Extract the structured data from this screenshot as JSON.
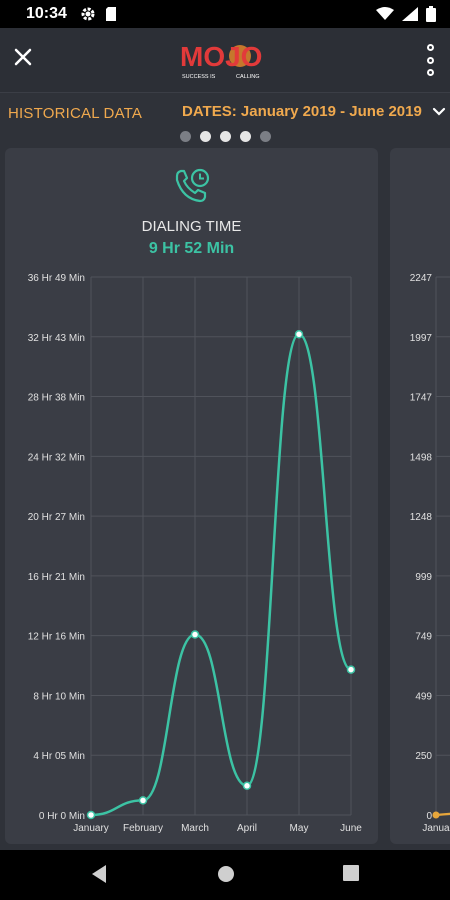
{
  "status": {
    "time": "10:34"
  },
  "header": {
    "logo_text": "MOJO",
    "logo_tagline_left": "SUCCESS IS",
    "logo_tagline_right": "CALLING"
  },
  "filter": {
    "historical_label": "HISTORICAL DATA",
    "dates_label": "DATES: January 2019 - June 2019"
  },
  "pager": {
    "count": 5,
    "active": 3
  },
  "card": {
    "title": "DIALING TIME",
    "value": "9 Hr 52 Min"
  },
  "colors": {
    "accent": "#f0a94e",
    "teal": "#3cc3a4",
    "card": "#3a3d45",
    "background": "#2f3239"
  },
  "chart_data": {
    "type": "line",
    "categories": [
      "January",
      "February",
      "March",
      "April",
      "May",
      "June"
    ],
    "y_tick_labels": [
      "0 Hr 0 Min",
      "4 Hr 05 Min",
      "8 Hr 10 Min",
      "12 Hr 16 Min",
      "16 Hr 21 Min",
      "20 Hr 27 Min",
      "24 Hr 32 Min",
      "28 Hr 38 Min",
      "32 Hr 43 Min",
      "36 Hr 49 Min"
    ],
    "ylim": [
      0,
      36.82
    ],
    "values": [
      0,
      1,
      12.35,
      2,
      32.9,
      9.95
    ],
    "series": [
      {
        "values": [
          0,
          1,
          12.35,
          2,
          32.9,
          9.95
        ]
      }
    ]
  },
  "chart_data_2": {
    "type": "line",
    "y_tick_labels": [
      "0",
      "250",
      "499",
      "749",
      "999",
      "1248",
      "1498",
      "1747",
      "1997",
      "2247"
    ],
    "visible_category": "Janua"
  }
}
